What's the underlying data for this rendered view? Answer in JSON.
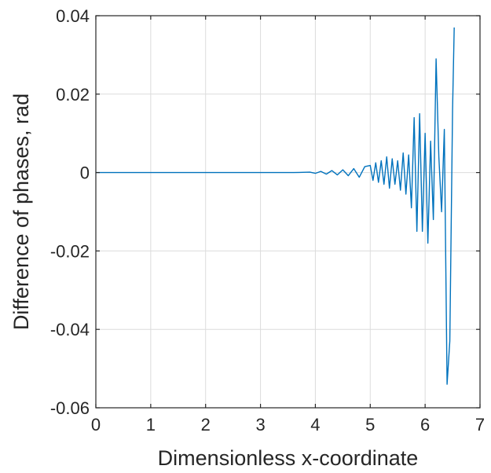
{
  "chart_data": {
    "type": "line",
    "title": "",
    "xlabel": "Dimensionless x-coordinate",
    "ylabel": "Difference of phases, rad",
    "xlim": [
      0,
      7
    ],
    "ylim": [
      -0.06,
      0.04
    ],
    "xticks": [
      0,
      1,
      2,
      3,
      4,
      5,
      6,
      7
    ],
    "xtick_labels": [
      "0",
      "1",
      "2",
      "3",
      "4",
      "5",
      "6",
      "7"
    ],
    "yticks": [
      -0.06,
      -0.04,
      -0.02,
      0,
      0.02,
      0.04
    ],
    "ytick_labels": [
      "-0.06",
      "-0.04",
      "-0.02",
      "0",
      "0.02",
      "0.04"
    ],
    "grid": true,
    "box": true,
    "colors": {
      "series": "#0072bd",
      "axis": "#262626",
      "grid": "#dcdcdc"
    },
    "series": [
      {
        "x": [
          0,
          3.6,
          3.9,
          4.0,
          4.1,
          4.2,
          4.3,
          4.4,
          4.5,
          4.6,
          4.7,
          4.8,
          4.9,
          5.0,
          5.05,
          5.1,
          5.15,
          5.2,
          5.25,
          5.3,
          5.35,
          5.4,
          5.45,
          5.5,
          5.55,
          5.6,
          5.65,
          5.7,
          5.75,
          5.8,
          5.85,
          5.9,
          5.95,
          6.0,
          6.05,
          6.1,
          6.15,
          6.2,
          6.25,
          6.3,
          6.35,
          6.4,
          6.45,
          6.5,
          6.53
        ],
        "y": [
          0,
          0,
          0.0001,
          -0.0002,
          0.0003,
          -0.0004,
          0.0005,
          -0.0006,
          0.0007,
          -0.0008,
          0.001,
          -0.0012,
          0.0015,
          0.0018,
          -0.002,
          0.0025,
          -0.0025,
          0.003,
          -0.003,
          0.004,
          -0.004,
          0.0035,
          -0.003,
          0.003,
          -0.0045,
          0.005,
          -0.0055,
          0.0045,
          -0.009,
          0.014,
          -0.015,
          0.015,
          -0.015,
          0.01,
          -0.018,
          0.008,
          -0.012,
          0.029,
          0.004,
          -0.01,
          0.011,
          -0.054,
          -0.043,
          0.016,
          0.037
        ]
      }
    ]
  }
}
